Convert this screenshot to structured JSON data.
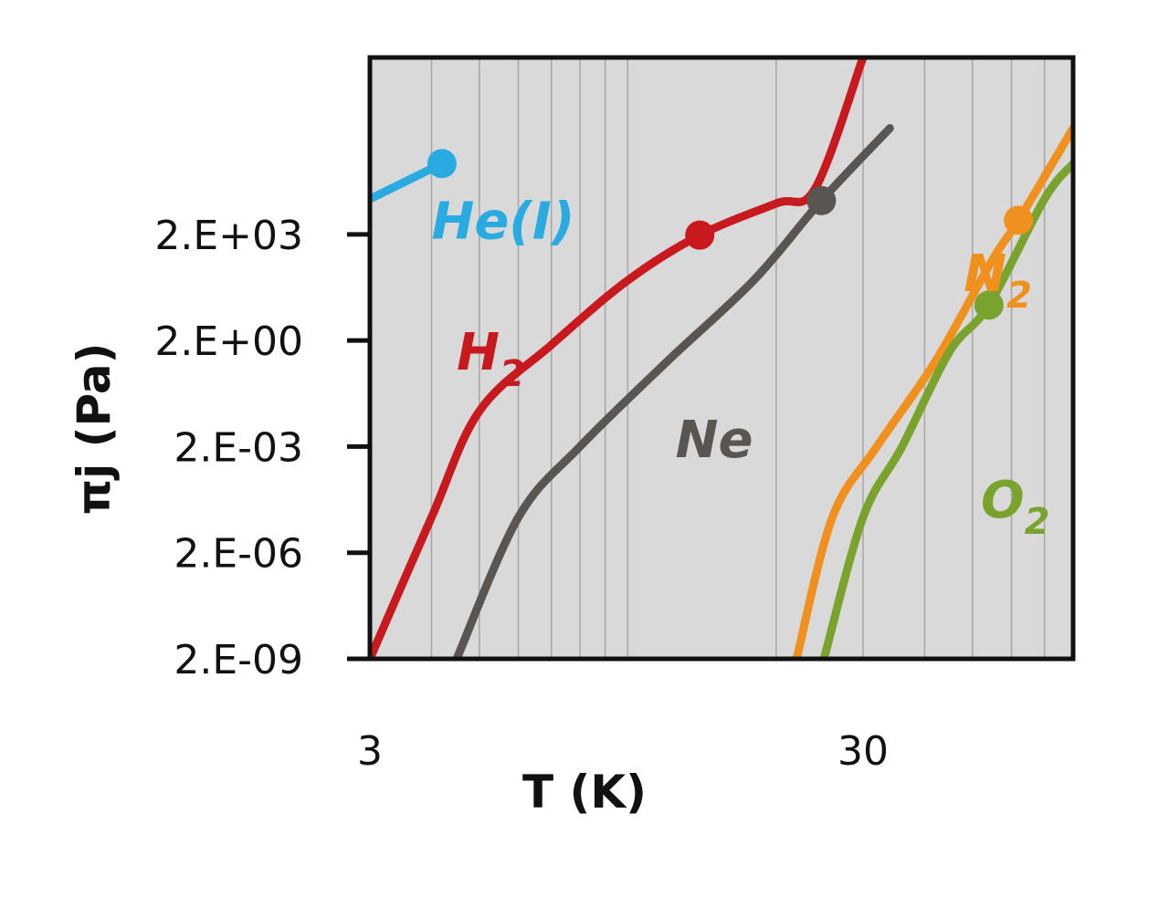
{
  "chart_data": {
    "type": "line",
    "xlabel": "T (K)",
    "ylabel": "πj (Pa)",
    "x_scale": "log",
    "y_scale": "log",
    "xlim": [
      3,
      80
    ],
    "ylim": [
      2e-09,
      200000000.0
    ],
    "x_ticks": [
      {
        "value": 3,
        "label": "3"
      },
      {
        "value": 30,
        "label": "30"
      }
    ],
    "y_ticks": [
      {
        "value": 2e-09,
        "label": "2.E-09"
      },
      {
        "value": 2e-06,
        "label": "2.E-06"
      },
      {
        "value": 0.002,
        "label": "2.E-03"
      },
      {
        "value": 2,
        "label": "2.E+00"
      },
      {
        "value": 2000,
        "label": "2.E+03"
      }
    ],
    "grid": {
      "vertical": true,
      "horizontal": false
    },
    "background": "#d9d9d9",
    "series": [
      {
        "name": "He(I)",
        "label_main": "He(I)",
        "label_sub": "",
        "color": "#29abe2",
        "points": [
          [
            3,
            20000.0
          ],
          [
            4.2,
            200000.0
          ]
        ],
        "marker": [
          4.2,
          200000.0
        ],
        "label_pos": [
          4.0,
          1500.0
        ]
      },
      {
        "name": "H2",
        "label_main": "H",
        "label_sub": "2",
        "color": "#c8191e",
        "points": [
          [
            3,
            2e-09
          ],
          [
            4,
            2e-05
          ],
          [
            5,
            0.02
          ],
          [
            7,
            1.5
          ],
          [
            10,
            100
          ],
          [
            14,
            1900
          ],
          [
            20,
            15000.0
          ],
          [
            24,
            40000.0
          ],
          [
            30,
            200000000.0
          ]
        ],
        "marker": [
          14,
          1900
        ],
        "label_pos": [
          4.5,
          0.3
        ]
      },
      {
        "name": "Ne",
        "label_main": "Ne",
        "label_sub": "",
        "color": "#5a5550",
        "points": [
          [
            4.5,
            2e-09
          ],
          [
            6,
            2e-05
          ],
          [
            8,
            0.002
          ],
          [
            12,
            0.5
          ],
          [
            18,
            100
          ],
          [
            24.7,
            18000.0
          ],
          [
            34,
            2000000.0
          ]
        ],
        "marker": [
          24.7,
          18000.0
        ],
        "label_pos": [
          12.5,
          0.001
        ]
      },
      {
        "name": "N2",
        "label_main": "N",
        "label_sub": "2",
        "color": "#f0901e",
        "points": [
          [
            22,
            2e-09
          ],
          [
            26,
            2e-05
          ],
          [
            32,
            0.002
          ],
          [
            42,
            0.5
          ],
          [
            55,
            400
          ],
          [
            62,
            5000.0
          ],
          [
            80,
            2000000.0
          ]
        ],
        "marker": [
          62,
          5000.0
        ],
        "label_pos": [
          48,
          50
        ]
      },
      {
        "name": "O2",
        "label_main": "O",
        "label_sub": "2",
        "color": "#7aa32e",
        "points": [
          [
            25,
            2e-09
          ],
          [
            30,
            2e-05
          ],
          [
            36,
            0.002
          ],
          [
            45,
            1
          ],
          [
            54,
            20
          ],
          [
            70,
            20000.0
          ],
          [
            80,
            200000.0
          ]
        ],
        "marker": [
          54,
          20
        ],
        "label_pos": [
          52,
          2e-05
        ]
      }
    ]
  }
}
